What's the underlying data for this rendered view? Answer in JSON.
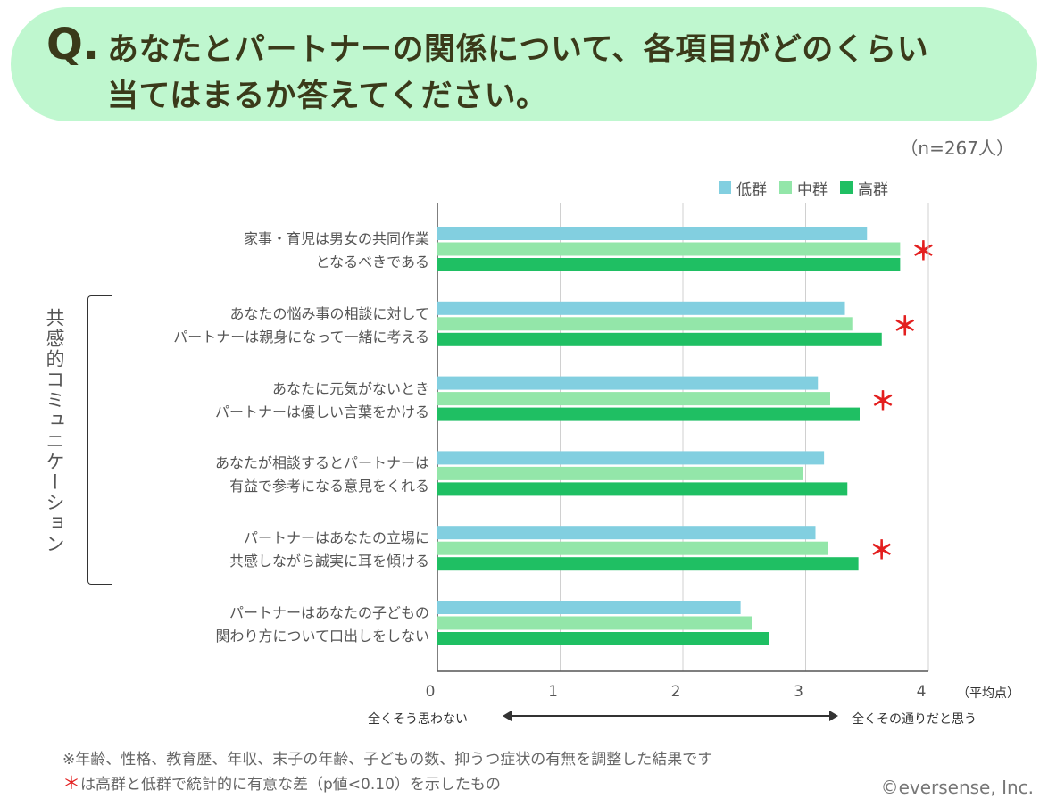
{
  "header": {
    "q_mark": "Q.",
    "title_line1": "あなたとパートナーの関係について、各項目がどのくらい",
    "title_line2": "当てはまるか答えてください。"
  },
  "sample": "（n=267人）",
  "group_label": "共感的コミュニケーション",
  "axis": {
    "unit": "（平均点）",
    "scale_left": "全くそう思わない",
    "scale_right": "全くその通りだと思う"
  },
  "notes": {
    "line1": "※年齢、性格、教育歴、年収、末子の年齢、子どもの数、抑うつ症状の有無を調整した結果です",
    "line2_mark": "＊",
    "line2_text": "は高群と低群で統計的に有意な差（p値<0.10）を示したもの"
  },
  "copyright": "©eversense, Inc.",
  "colors": {
    "low": "#82cfe0",
    "mid": "#93e6a9",
    "high": "#1fbf63",
    "grid": "#d0d0d0",
    "axis": "#555555",
    "star": "#e31f1f"
  },
  "chart_data": {
    "type": "bar",
    "orientation": "horizontal",
    "title": "あなたとパートナーの関係について、各項目がどのくらい当てはまるか答えてください。",
    "xlabel": "（平均点）",
    "xlim": [
      0,
      4
    ],
    "xticks": [
      "0",
      "1",
      "2",
      "3",
      "4"
    ],
    "grid": true,
    "legend_position": "top-right",
    "series": [
      {
        "name": "低群",
        "color": "#82cfe0",
        "values": [
          3.5,
          3.32,
          3.1,
          3.15,
          3.08,
          2.47
        ]
      },
      {
        "name": "中群",
        "color": "#93e6a9",
        "values": [
          3.77,
          3.38,
          3.2,
          2.98,
          3.18,
          2.56
        ]
      },
      {
        "name": "高群",
        "color": "#1fbf63",
        "values": [
          3.77,
          3.62,
          3.44,
          3.34,
          3.43,
          2.7
        ]
      }
    ],
    "categories": [
      {
        "line1": "家事・育児は男女の共同作業",
        "line2": "となるべきである",
        "significant": true,
        "mark": "＊"
      },
      {
        "line1": "あなたの悩み事の相談に対して",
        "line2": "パートナーは親身になって一緒に考える",
        "significant": true,
        "mark": "＊"
      },
      {
        "line1": "あなたに元気がないとき",
        "line2": "パートナーは優しい言葉をかける",
        "significant": true,
        "mark": "＊"
      },
      {
        "line1": "あなたが相談するとパートナーは",
        "line2": "有益で参考になる意見をくれる",
        "significant": false,
        "mark": ""
      },
      {
        "line1": "パートナーはあなたの立場に",
        "line2": "共感しながら誠実に耳を傾ける",
        "significant": true,
        "mark": "＊"
      },
      {
        "line1": "パートナーはあなたの子どもの",
        "line2": "関わり方について口出しをしない",
        "significant": false,
        "mark": ""
      }
    ]
  }
}
